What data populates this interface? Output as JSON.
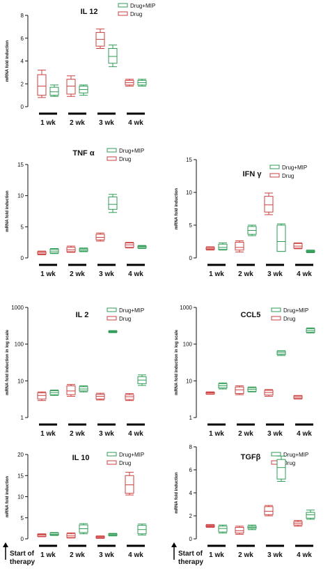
{
  "colors": {
    "drug_mip": "#2e9b55",
    "drug": "#cc3f3f",
    "axis": "#111111"
  },
  "chart_data": [
    {
      "id": "il12",
      "type": "box",
      "title": "IL 12",
      "ylabel": "mRNA fold induction",
      "yscale": "linear",
      "ylim": [
        0,
        8
      ],
      "yticks": [
        "0",
        "2",
        "4",
        "6",
        "8"
      ],
      "categories": [
        "1 wk",
        "2 wk",
        "3 wk",
        "4 wk"
      ],
      "legend": [
        "Drug+MIP",
        "Drug"
      ],
      "show_start_label": false,
      "series": [
        {
          "name": "Drug",
          "color_key": "drug",
          "boxes": [
            {
              "min": 0.8,
              "q1": 1.0,
              "median": 1.8,
              "q3": 2.8,
              "max": 3.2
            },
            {
              "min": 0.9,
              "q1": 1.1,
              "median": 1.8,
              "q3": 2.4,
              "max": 2.7
            },
            {
              "min": 5.1,
              "q1": 5.3,
              "median": 5.9,
              "q3": 6.5,
              "max": 6.8
            },
            {
              "min": 1.8,
              "q1": 1.9,
              "median": 2.1,
              "q3": 2.3,
              "max": 2.4
            }
          ]
        },
        {
          "name": "Drug+MIP",
          "color_key": "drug_mip",
          "boxes": [
            {
              "min": 0.9,
              "q1": 1.0,
              "median": 1.3,
              "q3": 1.7,
              "max": 1.9
            },
            {
              "min": 1.0,
              "q1": 1.2,
              "median": 1.5,
              "q3": 1.8,
              "max": 1.9
            },
            {
              "min": 3.5,
              "q1": 3.8,
              "median": 4.4,
              "q3": 5.1,
              "max": 5.4
            },
            {
              "min": 1.8,
              "q1": 1.9,
              "median": 2.1,
              "q3": 2.3,
              "max": 2.4
            }
          ]
        }
      ]
    },
    {
      "id": "tnf",
      "type": "box",
      "title": "TNF α",
      "ylabel": "mRNA fold induction",
      "yscale": "linear",
      "ylim": [
        0,
        15
      ],
      "yticks": [
        "0",
        "5",
        "10",
        "15"
      ],
      "categories": [
        "1 wk",
        "2 wk",
        "3 wk",
        "4 wk"
      ],
      "legend": [
        "Drug+MIP",
        "Drug"
      ],
      "show_start_label": false,
      "series": [
        {
          "name": "Drug",
          "color_key": "drug",
          "boxes": [
            {
              "min": 0.5,
              "q1": 0.6,
              "median": 0.8,
              "q3": 1.0,
              "max": 1.1
            },
            {
              "min": 0.9,
              "q1": 1.0,
              "median": 1.3,
              "q3": 1.7,
              "max": 1.9
            },
            {
              "min": 2.7,
              "q1": 2.9,
              "median": 3.3,
              "q3": 3.8,
              "max": 4.0
            },
            {
              "min": 1.6,
              "q1": 1.7,
              "median": 2.1,
              "q3": 2.4,
              "max": 2.5
            }
          ]
        },
        {
          "name": "Drug+MIP",
          "color_key": "drug_mip",
          "boxes": [
            {
              "min": 0.7,
              "q1": 0.8,
              "median": 1.1,
              "q3": 1.4,
              "max": 1.5
            },
            {
              "min": 1.0,
              "q1": 1.1,
              "median": 1.3,
              "q3": 1.5,
              "max": 1.6
            },
            {
              "min": 7.3,
              "q1": 7.8,
              "median": 8.6,
              "q3": 9.8,
              "max": 10.2
            },
            {
              "min": 1.5,
              "q1": 1.6,
              "median": 1.8,
              "q3": 1.9,
              "max": 2.0
            }
          ]
        }
      ]
    },
    {
      "id": "ifn",
      "type": "box",
      "title": "IFN γ",
      "ylabel": "mRNA fold induction",
      "yscale": "linear",
      "ylim": [
        0,
        15
      ],
      "yticks": [
        "0",
        "5",
        "10",
        "15"
      ],
      "categories": [
        "1 wk",
        "2 wk",
        "3 wk",
        "4 wk"
      ],
      "legend": [
        "Drug+MIP",
        "Drug"
      ],
      "show_start_label": false,
      "series": [
        {
          "name": "Drug",
          "color_key": "drug",
          "boxes": [
            {
              "min": 1.2,
              "q1": 1.3,
              "median": 1.4,
              "q3": 1.6,
              "max": 1.7
            },
            {
              "min": 0.9,
              "q1": 1.2,
              "median": 1.6,
              "q3": 2.4,
              "max": 2.6
            },
            {
              "min": 6.6,
              "q1": 7.0,
              "median": 8.1,
              "q3": 9.4,
              "max": 9.9
            },
            {
              "min": 1.4,
              "q1": 1.5,
              "median": 1.8,
              "q3": 2.2,
              "max": 2.3
            }
          ]
        },
        {
          "name": "Drug+MIP",
          "color_key": "drug_mip",
          "boxes": [
            {
              "min": 1.2,
              "q1": 1.3,
              "median": 1.6,
              "q3": 2.1,
              "max": 2.3
            },
            {
              "min": 3.4,
              "q1": 3.6,
              "median": 4.2,
              "q3": 4.8,
              "max": 5.0
            },
            {
              "min": 1.0,
              "q1": 1.0,
              "median": 2.5,
              "q3": 5.0,
              "max": 5.2
            },
            {
              "min": 0.8,
              "q1": 0.9,
              "median": 1.0,
              "q3": 1.1,
              "max": 1.2
            }
          ]
        }
      ]
    },
    {
      "id": "il2",
      "type": "box",
      "title": "IL 2",
      "ylabel": "mRNA fold induction in log scale",
      "yscale": "log",
      "ylim": [
        1,
        1000
      ],
      "yticks": [
        "1",
        "10",
        "100",
        "1000"
      ],
      "categories": [
        "1 wk",
        "2 wk",
        "3 wk",
        "4 wk"
      ],
      "legend": [
        "Drug+MIP",
        "Drug"
      ],
      "show_start_label": false,
      "series": [
        {
          "name": "Drug",
          "color_key": "drug",
          "boxes": [
            {
              "min": 2.9,
              "q1": 3.2,
              "median": 4.0,
              "q3": 4.7,
              "max": 5.0
            },
            {
              "min": 3.8,
              "q1": 4.2,
              "median": 5.3,
              "q3": 7.3,
              "max": 8.0
            },
            {
              "min": 3.0,
              "q1": 3.2,
              "median": 3.8,
              "q3": 4.3,
              "max": 4.6
            },
            {
              "min": 2.9,
              "q1": 3.1,
              "median": 3.7,
              "q3": 4.2,
              "max": 4.5
            }
          ]
        },
        {
          "name": "Drug+MIP",
          "color_key": "drug_mip",
          "boxes": [
            {
              "min": 4.0,
              "q1": 4.2,
              "median": 4.8,
              "q3": 5.4,
              "max": 5.6
            },
            {
              "min": 5.0,
              "q1": 5.3,
              "median": 6.0,
              "q3": 6.9,
              "max": 7.3
            },
            {
              "min": 205,
              "q1": 212,
              "median": 220,
              "q3": 228,
              "max": 234
            },
            {
              "min": 7.5,
              "q1": 8.4,
              "median": 10.5,
              "q3": 13.0,
              "max": 14.5
            }
          ]
        }
      ]
    },
    {
      "id": "ccl5",
      "type": "box",
      "title": "CCL5",
      "ylabel": "mRNA fold induction in log scale",
      "yscale": "log",
      "ylim": [
        1,
        1000
      ],
      "yticks": [
        "1",
        "10",
        "100",
        "1000"
      ],
      "categories": [
        "1 wk",
        "2 wk",
        "3 wk",
        "4 wk"
      ],
      "legend": [
        "Drug+MIP",
        "Drug"
      ],
      "show_start_label": false,
      "series": [
        {
          "name": "Drug",
          "color_key": "drug",
          "boxes": [
            {
              "min": 4.3,
              "q1": 4.4,
              "median": 4.7,
              "q3": 4.9,
              "max": 5.0
            },
            {
              "min": 4.2,
              "q1": 4.5,
              "median": 5.7,
              "q3": 6.8,
              "max": 7.3
            },
            {
              "min": 3.8,
              "q1": 4.1,
              "median": 4.8,
              "q3": 5.5,
              "max": 5.8
            },
            {
              "min": 3.2,
              "q1": 3.3,
              "median": 3.6,
              "q3": 3.9,
              "max": 4.0
            }
          ]
        },
        {
          "name": "Drug+MIP",
          "color_key": "drug_mip",
          "boxes": [
            {
              "min": 6.0,
              "q1": 6.4,
              "median": 7.3,
              "q3": 8.3,
              "max": 8.8
            },
            {
              "min": 5.0,
              "q1": 5.2,
              "median": 5.9,
              "q3": 6.5,
              "max": 6.8
            },
            {
              "min": 49,
              "q1": 52,
              "median": 58,
              "q3": 64,
              "max": 66
            },
            {
              "min": 200,
              "q1": 212,
              "median": 235,
              "q3": 262,
              "max": 276
            }
          ]
        }
      ]
    },
    {
      "id": "il10",
      "type": "box",
      "title": "IL 10",
      "ylabel": "mRNA fold induction",
      "yscale": "linear",
      "ylim": [
        0,
        20
      ],
      "yticks": [
        "0",
        "5",
        "10",
        "15",
        "20"
      ],
      "categories": [
        "1 wk",
        "2 wk",
        "3 wk",
        "4 wk"
      ],
      "legend": [
        "Drug+MIP",
        "Drug"
      ],
      "show_start_label": true,
      "start_label": [
        "Start of",
        "therapy"
      ],
      "series": [
        {
          "name": "Drug",
          "color_key": "drug",
          "boxes": [
            {
              "min": 0.5,
              "q1": 0.6,
              "median": 0.9,
              "q3": 1.1,
              "max": 1.2
            },
            {
              "min": 0.2,
              "q1": 0.3,
              "median": 0.7,
              "q3": 1.2,
              "max": 1.4
            },
            {
              "min": 0.1,
              "q1": 0.2,
              "median": 0.4,
              "q3": 0.6,
              "max": 0.7
            },
            {
              "min": 10.4,
              "q1": 10.8,
              "median": 12.8,
              "q3": 15.0,
              "max": 15.8
            }
          ]
        },
        {
          "name": "Drug+MIP",
          "color_key": "drug_mip",
          "boxes": [
            {
              "min": 0.8,
              "q1": 0.9,
              "median": 1.1,
              "q3": 1.4,
              "max": 1.5
            },
            {
              "min": 1.2,
              "q1": 1.5,
              "median": 2.4,
              "q3": 3.3,
              "max": 3.6
            },
            {
              "min": 0.7,
              "q1": 0.8,
              "median": 1.0,
              "q3": 1.2,
              "max": 1.3
            },
            {
              "min": 0.9,
              "q1": 1.2,
              "median": 2.2,
              "q3": 3.2,
              "max": 3.5
            }
          ]
        }
      ]
    },
    {
      "id": "tgfb",
      "type": "box",
      "title": "TGFβ",
      "ylabel": "mRNA fold induction",
      "yscale": "linear",
      "ylim": [
        0,
        8
      ],
      "yticks": [
        "0",
        "2",
        "4",
        "6",
        "8"
      ],
      "categories": [
        "1 wk",
        "2 wk",
        "3 wk",
        "4 wk"
      ],
      "legend": [
        "Drug+MIP",
        "Drug"
      ],
      "show_start_label": true,
      "start_label": [
        "Start of",
        "therapy"
      ],
      "series": [
        {
          "name": "Drug",
          "color_key": "drug",
          "boxes": [
            {
              "min": 1.0,
              "q1": 1.05,
              "median": 1.12,
              "q3": 1.2,
              "max": 1.25
            },
            {
              "min": 0.4,
              "q1": 0.5,
              "median": 0.7,
              "q3": 1.0,
              "max": 1.1
            },
            {
              "min": 2.0,
              "q1": 2.1,
              "median": 2.4,
              "q3": 2.8,
              "max": 2.9
            },
            {
              "min": 1.1,
              "q1": 1.2,
              "median": 1.35,
              "q3": 1.5,
              "max": 1.6
            }
          ]
        },
        {
          "name": "Drug+MIP",
          "color_key": "drug_mip",
          "boxes": [
            {
              "min": 0.5,
              "q1": 0.6,
              "median": 0.9,
              "q3": 1.1,
              "max": 1.2
            },
            {
              "min": 0.8,
              "q1": 0.9,
              "median": 1.0,
              "q3": 1.1,
              "max": 1.2
            },
            {
              "min": 5.0,
              "q1": 5.2,
              "median": 6.2,
              "q3": 6.9,
              "max": 7.2
            },
            {
              "min": 1.7,
              "q1": 1.8,
              "median": 2.1,
              "q3": 2.3,
              "max": 2.5
            }
          ]
        }
      ]
    }
  ]
}
